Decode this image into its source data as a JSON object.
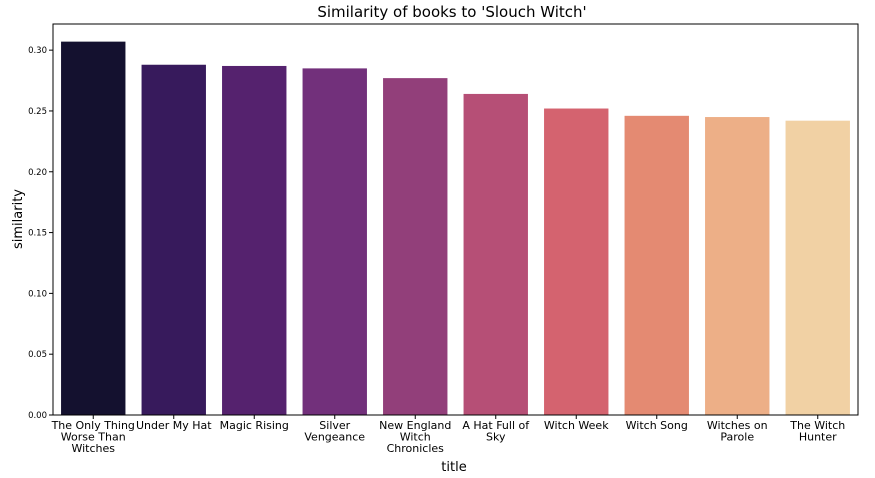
{
  "chart_data": {
    "type": "bar",
    "title": "Similarity of books to 'Slouch Witch'",
    "xlabel": "title",
    "ylabel": "similarity",
    "categories": [
      "The Only Thing Worse Than Witches",
      "Under My Hat",
      "Magic Rising",
      "Silver Vengeance",
      "New England Witch Chronicles",
      "A Hat Full of Sky",
      "Witch Week",
      "Witch Song",
      "Witches on Parole",
      "The Witch Hunter"
    ],
    "category_lines": [
      [
        "The Only Thing",
        "Worse Than",
        "Witches"
      ],
      [
        "Under My Hat"
      ],
      [
        "Magic Rising"
      ],
      [
        "Silver",
        "Vengeance"
      ],
      [
        "New England",
        "Witch",
        "Chronicles"
      ],
      [
        "A Hat Full of",
        "Sky"
      ],
      [
        "Witch Week"
      ],
      [
        "Witch Song"
      ],
      [
        "Witches on",
        "Parole"
      ],
      [
        "The Witch",
        "Hunter"
      ]
    ],
    "values": [
      0.307,
      0.288,
      0.287,
      0.285,
      0.277,
      0.264,
      0.252,
      0.246,
      0.245,
      0.242
    ],
    "colors": [
      "#14112f",
      "#371a5c",
      "#55226e",
      "#72307b",
      "#923f7a",
      "#b64f76",
      "#d4636f",
      "#e48a72",
      "#edaf87",
      "#f1d1a4"
    ],
    "yticks": [
      "0.00",
      "0.05",
      "0.10",
      "0.15",
      "0.20",
      "0.25",
      "0.30"
    ],
    "ylim": [
      0,
      0.3215
    ],
    "grid": false
  }
}
